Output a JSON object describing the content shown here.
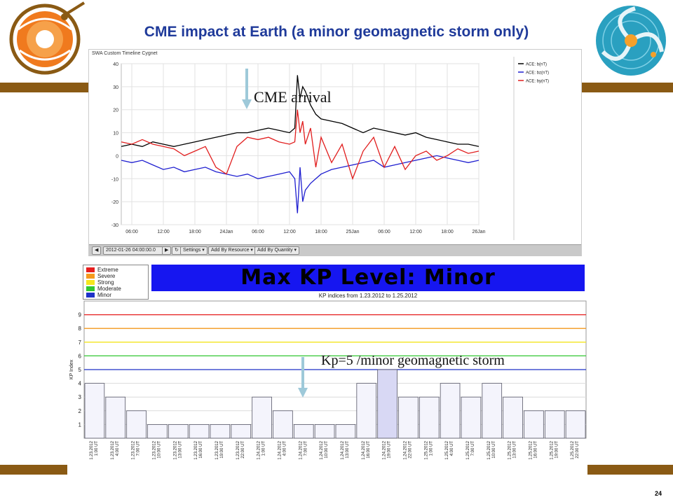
{
  "slide": {
    "title": "CME impact at Earth (a minor geomagnetic storm only)",
    "page_number": "24",
    "band_color": "#8a5a14",
    "title_color": "#1f3a9a"
  },
  "annotations": {
    "cme_arrival": "CME arrival",
    "kp_storm": "Kp=5 /minor geomagnetic storm"
  },
  "top_panel": {
    "app_title": "SWA Custom Timeline Cygnet",
    "toolbar": {
      "date": "2012-01-26 04:00:00.0",
      "settings": "Settings",
      "add_by_resource": "Add By Resource",
      "add_by_quantity": "Add By Quantity"
    }
  },
  "kp_panel": {
    "banner": "Max KP Level: Minor",
    "subtitle": "KP indices from 1.23.2012 to 1.25.2012",
    "legend": [
      {
        "label": "Extreme",
        "color": "#e61e1e"
      },
      {
        "label": "Severe",
        "color": "#f59a1e"
      },
      {
        "label": "Strong",
        "color": "#f5e61e"
      },
      {
        "label": "Moderate",
        "color": "#32c832"
      },
      {
        "label": "Minor",
        "color": "#1e32c8"
      }
    ]
  },
  "chart_data": [
    {
      "type": "line",
      "title": "",
      "ylim": [
        -30,
        40
      ],
      "yticks": [
        -30,
        -20,
        -10,
        0,
        10,
        20,
        30,
        40
      ],
      "xlim": [
        4,
        72
      ],
      "xtick_labels": [
        "06:00",
        "12:00",
        "18:00",
        "24Jan",
        "06:00",
        "12:00",
        "18:00",
        "25Jan",
        "06:00",
        "12:00",
        "18:00",
        "26Jan"
      ],
      "xtick_hours": [
        6,
        12,
        18,
        24,
        30,
        36,
        42,
        48,
        54,
        60,
        66,
        72
      ],
      "grid": true,
      "legend_position": "right",
      "series": [
        {
          "name": "ACE: b(nT)",
          "color": "#000000",
          "x": [
            4,
            6,
            8,
            10,
            12,
            14,
            16,
            18,
            20,
            22,
            24,
            26,
            28,
            30,
            32,
            34,
            36,
            37,
            37.5,
            38,
            38.5,
            39,
            40,
            41,
            42,
            44,
            46,
            48,
            50,
            52,
            54,
            56,
            58,
            60,
            62,
            64,
            66,
            68,
            70,
            72
          ],
          "values": [
            4,
            5,
            4,
            6,
            5,
            4,
            5,
            6,
            7,
            8,
            9,
            10,
            10,
            11,
            12,
            11,
            10,
            12,
            35,
            25,
            30,
            28,
            22,
            18,
            16,
            15,
            14,
            12,
            10,
            12,
            11,
            10,
            9,
            10,
            8,
            7,
            6,
            5,
            5,
            4
          ]
        },
        {
          "name": "ACE: bz(nT)",
          "color": "#1f1fd0",
          "x": [
            4,
            6,
            8,
            10,
            12,
            14,
            16,
            18,
            20,
            22,
            24,
            26,
            28,
            30,
            32,
            34,
            36,
            37,
            37.5,
            38,
            38.5,
            39,
            40,
            41,
            42,
            44,
            46,
            48,
            50,
            52,
            54,
            56,
            58,
            60,
            62,
            64,
            66,
            68,
            70,
            72
          ],
          "values": [
            -2,
            -3,
            -2,
            -4,
            -6,
            -5,
            -7,
            -6,
            -5,
            -7,
            -8,
            -9,
            -8,
            -10,
            -9,
            -8,
            -7,
            -10,
            -25,
            -5,
            -20,
            -15,
            -12,
            -10,
            -8,
            -6,
            -5,
            -4,
            -3,
            -2,
            -5,
            -4,
            -3,
            -2,
            -1,
            0,
            -1,
            -2,
            -3,
            -2
          ]
        },
        {
          "name": "ACE: by(nT)",
          "color": "#e11e1e",
          "x": [
            4,
            6,
            8,
            10,
            12,
            14,
            16,
            18,
            20,
            22,
            24,
            26,
            28,
            30,
            32,
            34,
            36,
            37,
            37.5,
            38,
            38.5,
            39,
            40,
            41,
            42,
            44,
            46,
            48,
            50,
            52,
            54,
            56,
            58,
            60,
            62,
            64,
            66,
            68,
            70,
            72
          ],
          "values": [
            6,
            5,
            7,
            5,
            4,
            3,
            0,
            2,
            4,
            -5,
            -8,
            4,
            8,
            7,
            8,
            6,
            5,
            6,
            20,
            10,
            15,
            5,
            12,
            -5,
            8,
            -3,
            5,
            -10,
            2,
            8,
            -5,
            4,
            -6,
            0,
            2,
            -2,
            0,
            3,
            1,
            2
          ]
        }
      ]
    },
    {
      "type": "bar",
      "title": "KP indices from 1.23.2012 to 1.25.2012",
      "ylabel": "KP Index",
      "ylim": [
        0,
        10
      ],
      "yticks": [
        1,
        2,
        3,
        4,
        5,
        6,
        7,
        8,
        9
      ],
      "threshold_lines": [
        {
          "level": 9,
          "color": "#e61e1e"
        },
        {
          "level": 8,
          "color": "#f59a1e"
        },
        {
          "level": 7,
          "color": "#f5e61e"
        },
        {
          "level": 6,
          "color": "#32c832"
        },
        {
          "level": 5,
          "color": "#1e32c8"
        }
      ],
      "categories": [
        [
          "1.23.2012",
          "1:00 UT"
        ],
        [
          "1.23.2012",
          "4:00 UT"
        ],
        [
          "1.23.2012",
          "7:00 UT"
        ],
        [
          "1.23.2012",
          "10:00 UT"
        ],
        [
          "1.23.2012",
          "13:00 UT"
        ],
        [
          "1.23.2012",
          "16:00 UT"
        ],
        [
          "1.23.2012",
          "19:00 UT"
        ],
        [
          "1.23.2012",
          "22:00 UT"
        ],
        [
          "1.24.2012",
          "1:00 UT"
        ],
        [
          "1.24.2012",
          "4:00 UT"
        ],
        [
          "1.24.2012",
          "7:00 UT"
        ],
        [
          "1.24.2012",
          "10:00 UT"
        ],
        [
          "1.24.2012",
          "13:00 UT"
        ],
        [
          "1.24.2012",
          "16:00 UT"
        ],
        [
          "1.24.2012",
          "19:00 UT"
        ],
        [
          "1.24.2012",
          "22:00 UT"
        ],
        [
          "1.25.2012",
          "1:00 UT"
        ],
        [
          "1.25.2012",
          "4:00 UT"
        ],
        [
          "1.25.2012",
          "7:00 UT"
        ],
        [
          "1.25.2012",
          "10:00 UT"
        ],
        [
          "1.25.2012",
          "13:00 UT"
        ],
        [
          "1.25.2012",
          "16:00 UT"
        ],
        [
          "1.25.2012",
          "19:00 UT"
        ],
        [
          "1.25.2012",
          "22:00 UT"
        ]
      ],
      "values": [
        4,
        3,
        2,
        1,
        1,
        1,
        1,
        1,
        3,
        2,
        1,
        1,
        1,
        4,
        5,
        3,
        3,
        4,
        3,
        4,
        3,
        2,
        2,
        2
      ],
      "bar_color": "#f4f4fc",
      "highlight_color": "#d8d8f4",
      "bar_edge": "#555566"
    }
  ]
}
